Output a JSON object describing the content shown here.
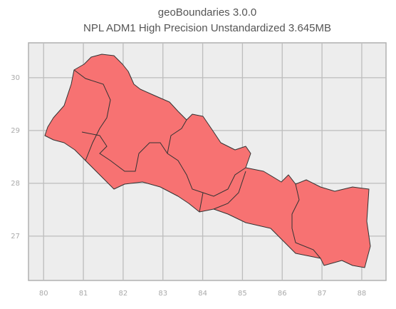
{
  "chart_data": {
    "type": "map",
    "title": "geoBoundaries 3.0.0",
    "subtitle": "NPL ADM1 High Precision Unstandardized 3.645MB",
    "xlim": [
      79.62,
      88.61
    ],
    "ylim": [
      26.16,
      30.66
    ],
    "xticks": [
      80,
      81,
      82,
      83,
      84,
      85,
      86,
      87,
      88
    ],
    "yticks": [
      27,
      28,
      29,
      30
    ],
    "grid": true,
    "color": "#f77272"
  }
}
